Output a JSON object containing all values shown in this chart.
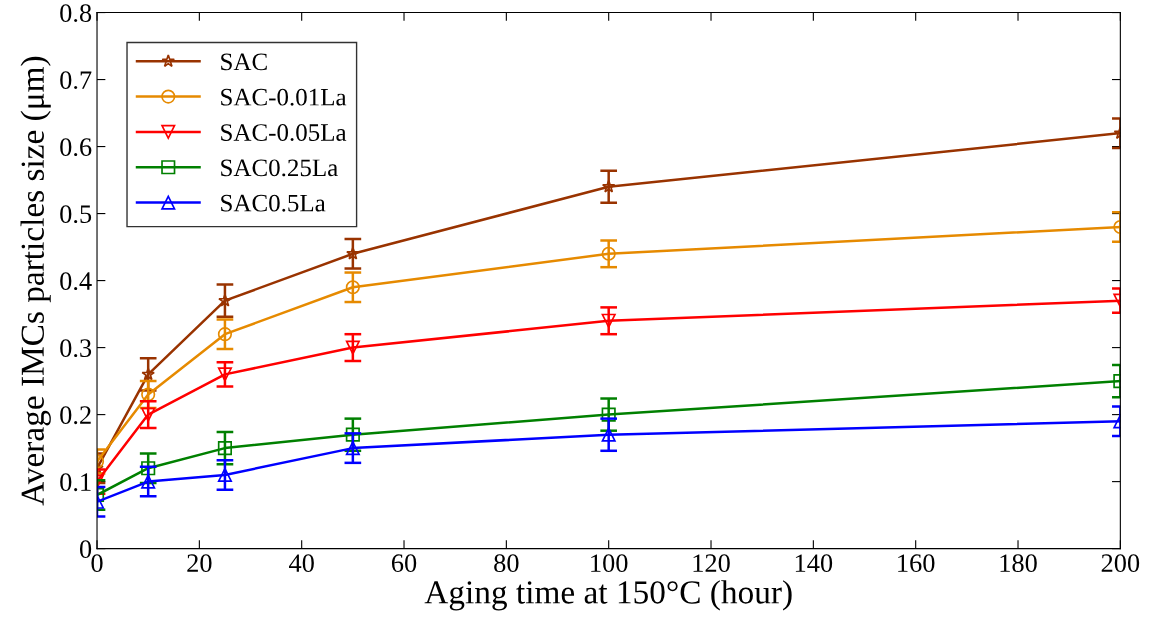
{
  "chart_data": {
    "type": "line",
    "xlabel": "Aging time at 150°C (hour)",
    "ylabel": "Average IMCs particles size (μm)",
    "x": [
      0,
      10,
      25,
      50,
      100,
      200
    ],
    "series": [
      {
        "name": "SAC",
        "color": "#993300",
        "marker": "star",
        "values": [
          0.12,
          0.26,
          0.37,
          0.44,
          0.54,
          0.62
        ],
        "errors": [
          0.022,
          0.024,
          0.024,
          0.022,
          0.024,
          0.022
        ]
      },
      {
        "name": "SAC-0.01La",
        "color": "#e68a00",
        "marker": "circle",
        "values": [
          0.13,
          0.23,
          0.32,
          0.39,
          0.44,
          0.48
        ],
        "errors": [
          0.018,
          0.02,
          0.022,
          0.022,
          0.02,
          0.022
        ]
      },
      {
        "name": "SAC-0.05La",
        "color": "#ff0000",
        "marker": "triangle_down",
        "values": [
          0.1,
          0.2,
          0.26,
          0.3,
          0.34,
          0.37
        ],
        "errors": [
          0.018,
          0.02,
          0.018,
          0.02,
          0.02,
          0.018
        ]
      },
      {
        "name": "SAC0.25La",
        "color": "#008000",
        "marker": "square",
        "values": [
          0.08,
          0.12,
          0.15,
          0.17,
          0.2,
          0.25
        ],
        "errors": [
          0.022,
          0.022,
          0.024,
          0.024,
          0.024,
          0.024
        ]
      },
      {
        "name": "SAC0.5La",
        "color": "#0000ff",
        "marker": "triangle",
        "values": [
          0.07,
          0.1,
          0.11,
          0.15,
          0.17,
          0.19
        ],
        "errors": [
          0.022,
          0.022,
          0.022,
          0.022,
          0.024,
          0.022
        ]
      }
    ],
    "xlim": [
      0,
      200
    ],
    "xticks": [
      0,
      20,
      40,
      60,
      80,
      100,
      120,
      140,
      160,
      180,
      200
    ],
    "ylim": [
      0,
      0.8
    ],
    "yticks": [
      0,
      0.1,
      0.2,
      0.3,
      0.4,
      0.5,
      0.6,
      0.7,
      0.8
    ],
    "grid": false,
    "legend": "top left",
    "line_style": "solid"
  }
}
